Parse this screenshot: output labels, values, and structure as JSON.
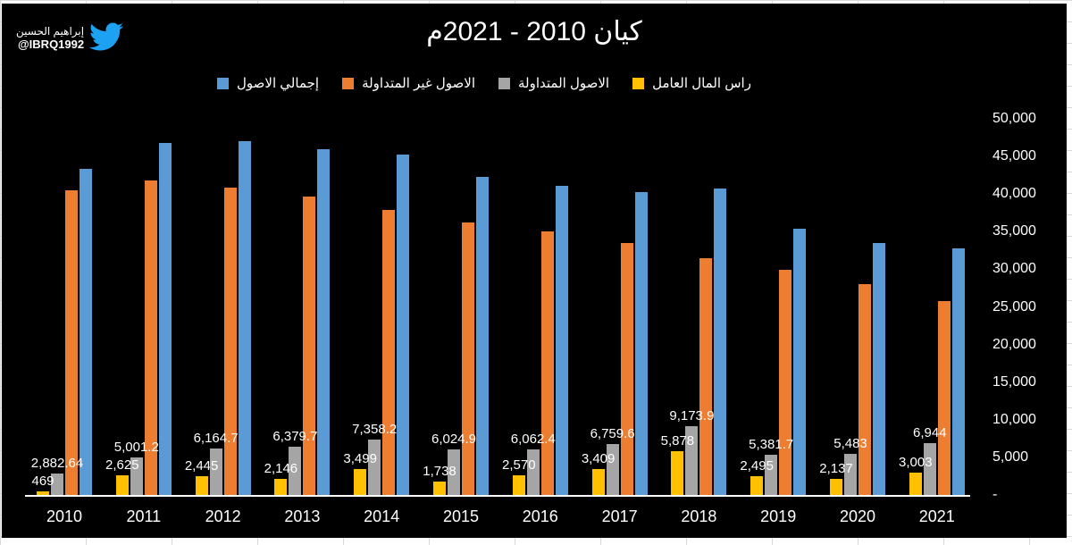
{
  "watermark": {
    "name": "إبراهيم الحسين",
    "handle": "@IBRQ1992",
    "icon": "twitter-bird-icon",
    "icon_color": "#1DA1F2"
  },
  "title": "كيان 2010 - 2021م",
  "chart_data": {
    "type": "bar",
    "title": "كيان 2010 - 2021م",
    "categories": [
      "2010",
      "2011",
      "2012",
      "2013",
      "2014",
      "2015",
      "2016",
      "2017",
      "2018",
      "2019",
      "2020",
      "2021"
    ],
    "series": [
      {
        "name": "إجمالي الاصول",
        "color": "#5B9BD5",
        "values": [
          43400,
          46800,
          47000,
          46000,
          45250,
          42250,
          41100,
          40300,
          40700,
          35350,
          33550,
          32750
        ],
        "labels": null
      },
      {
        "name": "الاصول غير المتداولة",
        "color": "#ED7D31",
        "values": [
          40520,
          41800,
          40840,
          39620,
          37890,
          36230,
          35040,
          33540,
          31530,
          29970,
          28070,
          25810
        ],
        "labels": null
      },
      {
        "name": "الاصول المتداولة",
        "color": "#A5A5A5",
        "values": [
          2882.64,
          5001.2,
          6164.7,
          6379.7,
          7358.2,
          6024.9,
          6062.4,
          6759.6,
          9173.9,
          5381.7,
          5483,
          6944
        ],
        "labels": [
          "2,882.64",
          "5,001.2",
          "6,164.7",
          "6,379.7",
          "7,358.2",
          "6,024.9",
          "6,062.4",
          "6,759.6",
          "9,173.9",
          "5,381.7",
          "5,483",
          "6,944"
        ]
      },
      {
        "name": "راس المال العامل",
        "color": "#FFC000",
        "values": [
          469,
          2625,
          2445,
          2146,
          3499,
          1738,
          2570,
          3409,
          5878,
          2495,
          2137,
          3003
        ],
        "labels": [
          "469",
          "2,625",
          "2,445",
          "2,146",
          "3,499",
          "1,738",
          "2,570",
          "3,409",
          "5,878",
          "2,495",
          "2,137",
          "3,003"
        ]
      }
    ],
    "y_axis": {
      "ticks": [
        {
          "label": "50,000",
          "value": 50000
        },
        {
          "label": "45,000",
          "value": 45000
        },
        {
          "label": "40,000",
          "value": 40000
        },
        {
          "label": "35,000",
          "value": 35000
        },
        {
          "label": "30,000",
          "value": 30000
        },
        {
          "label": "25,000",
          "value": 25000
        },
        {
          "label": "20,000",
          "value": 20000
        },
        {
          "label": "15,000",
          "value": 15000
        },
        {
          "label": "10,000",
          "value": 10000
        },
        {
          "label": "5,000",
          "value": 5000
        },
        {
          "label": "-",
          "value": 0
        }
      ],
      "min": 0,
      "max": 50000,
      "side": "right"
    },
    "legend_position": "top",
    "grid": false,
    "background": "#000000"
  }
}
